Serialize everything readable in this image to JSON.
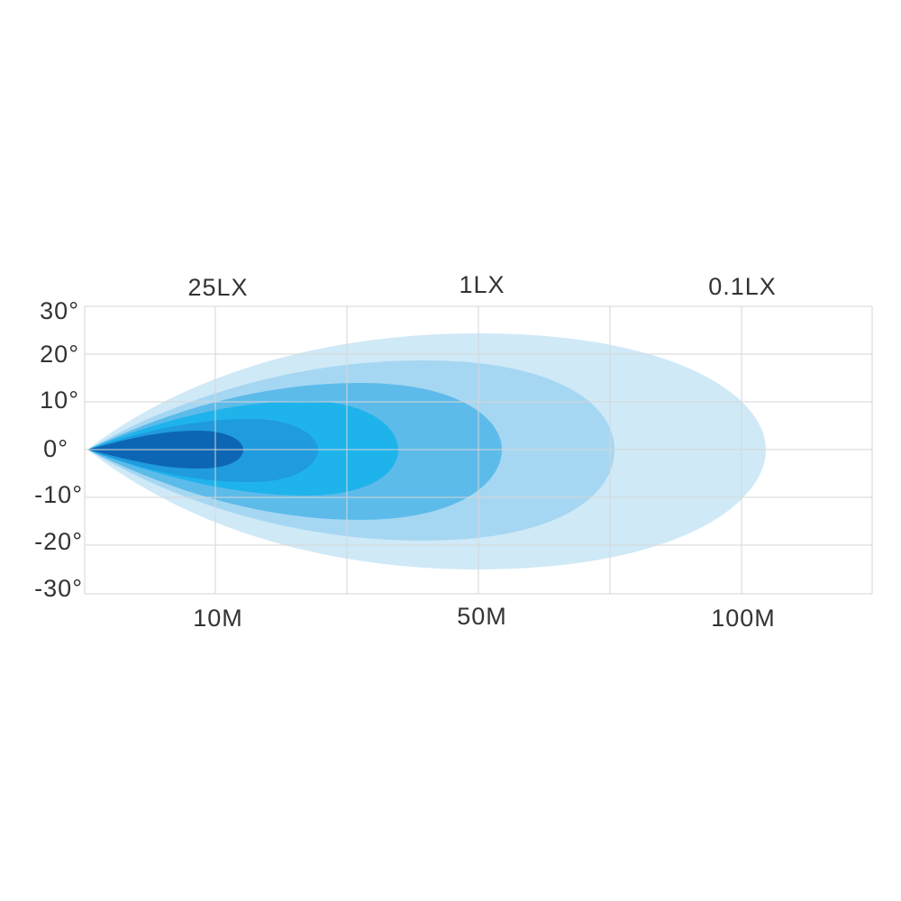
{
  "top_labels": [
    "25LX",
    "1LX",
    "0.1LX"
  ],
  "y_labels": [
    "30°",
    "20°",
    "10°",
    "0°",
    "-10°",
    "-20°",
    "-30°"
  ],
  "bottom_labels": [
    "10M",
    "50M",
    "100M"
  ]
}
